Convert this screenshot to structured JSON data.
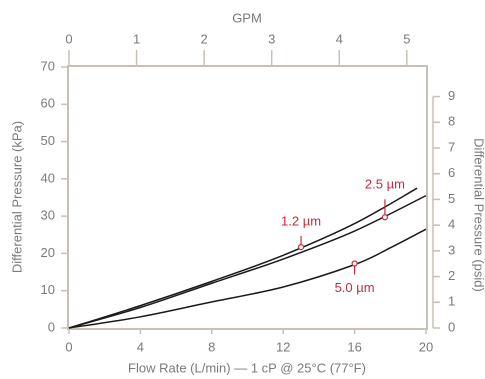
{
  "chart_data": {
    "type": "line",
    "xlabel": "Flow Rate (L/min) — 1 cP @ 25°C (77°F)",
    "ylabel": "Differential Pressure (kPa)",
    "x2label": "GPM",
    "y2label": "Differential Pressure (psid)",
    "xlim": [
      0,
      20
    ],
    "xticks": [
      0,
      4,
      8,
      12,
      16,
      20
    ],
    "ylim": [
      0,
      70
    ],
    "yticks": [
      0,
      10,
      20,
      30,
      40,
      50,
      60,
      70
    ],
    "x2lim": [
      0,
      5.284
    ],
    "x2ticks": [
      0,
      1,
      2,
      3,
      4,
      5
    ],
    "y2lim": [
      0,
      10.15
    ],
    "y2ticks": [
      0,
      1,
      2,
      3,
      4,
      5,
      6,
      7,
      8,
      9
    ],
    "series": [
      {
        "color": "#1a1a1a",
        "x": [
          0,
          4,
          8,
          12,
          16,
          19.5
        ],
        "values": [
          0,
          6,
          12.5,
          19.5,
          28,
          37.5
        ]
      },
      {
        "color": "#1a1a1a",
        "x": [
          0,
          4,
          8,
          12,
          16,
          20
        ],
        "values": [
          0,
          5.5,
          12,
          18.5,
          26,
          35.5
        ]
      },
      {
        "color": "#1a1a1a",
        "x": [
          0,
          4,
          8,
          12,
          16,
          18,
          20
        ],
        "values": [
          0,
          3,
          7,
          11,
          17,
          21.5,
          26.5
        ]
      }
    ],
    "annotations": [
      {
        "text": "1.2 µm",
        "x": 13,
        "y": 21.7
      },
      {
        "text": "2.5 µm",
        "x": 17.7,
        "y": 29.7
      },
      {
        "text": "5.0 µm",
        "x": 16,
        "y": 17.3
      }
    ]
  }
}
